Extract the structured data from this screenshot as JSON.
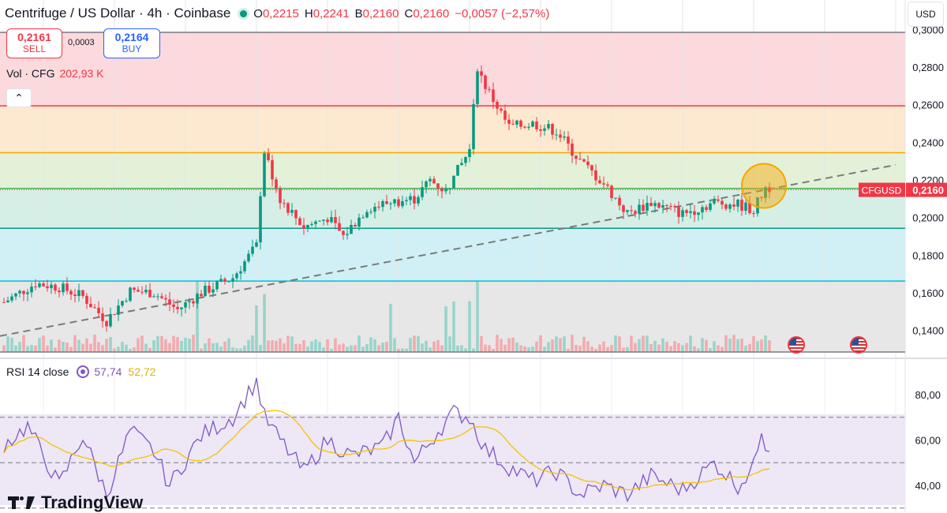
{
  "header": {
    "title": "Centrifuge / US Dollar · 4h · Coinbase",
    "ohlc": [
      {
        "k": "O",
        "v": "0,2215"
      },
      {
        "k": "H",
        "v": "0,2241"
      },
      {
        "k": "B",
        "v": "0,2160"
      },
      {
        "k": "C",
        "v": "0,2160"
      },
      {
        "k": "",
        "v": "−0,0057 (−2,57%)"
      }
    ]
  },
  "trade": {
    "sell_price": "0,2161",
    "sell_label": "SELL",
    "spread": "0,0003",
    "buy_price": "0,2164",
    "buy_label": "BUY"
  },
  "volume": {
    "label": "Vol · CFG",
    "value": "202,93 K"
  },
  "collapse_glyph": "⌃",
  "currency": "USD",
  "rsi": {
    "label": "RSI 14 close",
    "value": "57,74",
    "ma_value": "52,72",
    "color": "#7e57c2",
    "ma_color": "#f5c400"
  },
  "brand": "TradingView",
  "colors": {
    "up": "#089981",
    "down": "#f23645"
  },
  "chart_data": {
    "type": "candlestick",
    "title": "Centrifuge / US Dollar · 4h · Coinbase",
    "ylim": [
      0.13,
      0.3
    ],
    "yticks": [
      "0,1400",
      "0,1600",
      "0,1800",
      "0,2000",
      "0,2200",
      "0,2400",
      "0,2600",
      "0,2800",
      "0,3000"
    ],
    "ytick_values": [
      0.14,
      0.16,
      0.18,
      0.2,
      0.22,
      0.24,
      0.26,
      0.28,
      0.3
    ],
    "last_price": {
      "label": "CFGUSD",
      "value": "0,2160",
      "y": 0.216
    },
    "levels": [
      {
        "y": 0.2985,
        "color": "#787b86"
      },
      {
        "y": 0.2594,
        "color": "#f23645"
      },
      {
        "y": 0.2345,
        "color": "#f7a600"
      },
      {
        "y": 0.2155,
        "color": "#4caf50"
      },
      {
        "y": 0.1943,
        "color": "#089981"
      },
      {
        "y": 0.1662,
        "color": "#00bcd4"
      },
      {
        "y": 0.1285,
        "color": "#787b86"
      }
    ],
    "zones": [
      {
        "from": 0.2594,
        "to": 0.2985,
        "color": "#fbd9dc"
      },
      {
        "from": 0.2345,
        "to": 0.2594,
        "color": "#fde9cf"
      },
      {
        "from": 0.2155,
        "to": 0.2345,
        "color": "#e3f1d8"
      },
      {
        "from": 0.1943,
        "to": 0.2155,
        "color": "#d5efe6"
      },
      {
        "from": 0.1662,
        "to": 0.1943,
        "color": "#d1f0f5"
      },
      {
        "from": 0.1285,
        "to": 0.1662,
        "color": "#e7e7e7"
      }
    ],
    "trendline": {
      "y_start": 0.137,
      "y_end": 0.228
    },
    "highlight": {
      "index": 193,
      "y": 0.216
    },
    "anchors": [
      [
        0,
        0.155
      ],
      [
        8,
        0.165
      ],
      [
        14,
        0.163
      ],
      [
        20,
        0.158
      ],
      [
        26,
        0.145
      ],
      [
        32,
        0.161
      ],
      [
        38,
        0.16
      ],
      [
        44,
        0.151
      ],
      [
        50,
        0.16
      ],
      [
        58,
        0.168
      ],
      [
        64,
        0.185
      ],
      [
        66,
        0.235
      ],
      [
        70,
        0.21
      ],
      [
        76,
        0.195
      ],
      [
        82,
        0.2
      ],
      [
        86,
        0.19
      ],
      [
        92,
        0.205
      ],
      [
        98,
        0.208
      ],
      [
        104,
        0.21
      ],
      [
        108,
        0.22
      ],
      [
        112,
        0.214
      ],
      [
        118,
        0.236
      ],
      [
        120,
        0.28
      ],
      [
        122,
        0.27
      ],
      [
        128,
        0.248
      ],
      [
        134,
        0.25
      ],
      [
        140,
        0.246
      ],
      [
        146,
        0.23
      ],
      [
        152,
        0.218
      ],
      [
        158,
        0.202
      ],
      [
        164,
        0.208
      ],
      [
        172,
        0.202
      ],
      [
        180,
        0.208
      ],
      [
        186,
        0.207
      ],
      [
        190,
        0.204
      ],
      [
        193,
        0.216
      ]
    ],
    "rsi_ylim": [
      30,
      90
    ],
    "rsi_yticks": [
      "40,00",
      "60,00",
      "80,00"
    ],
    "rsi_ytick_values": [
      40,
      60,
      80
    ],
    "rsi_bands": [
      70,
      50,
      30
    ],
    "rsi_anchors": [
      [
        0,
        58
      ],
      [
        6,
        66
      ],
      [
        14,
        40
      ],
      [
        20,
        62
      ],
      [
        26,
        36
      ],
      [
        32,
        64
      ],
      [
        38,
        55
      ],
      [
        42,
        40
      ],
      [
        50,
        62
      ],
      [
        58,
        70
      ],
      [
        64,
        86
      ],
      [
        66,
        70
      ],
      [
        70,
        60
      ],
      [
        76,
        46
      ],
      [
        82,
        60
      ],
      [
        88,
        53
      ],
      [
        96,
        57
      ],
      [
        100,
        70
      ],
      [
        104,
        50
      ],
      [
        110,
        64
      ],
      [
        114,
        72
      ],
      [
        118,
        70
      ],
      [
        122,
        56
      ],
      [
        128,
        48
      ],
      [
        134,
        42
      ],
      [
        140,
        46
      ],
      [
        146,
        36
      ],
      [
        152,
        40
      ],
      [
        158,
        36
      ],
      [
        164,
        44
      ],
      [
        172,
        38
      ],
      [
        180,
        50
      ],
      [
        186,
        40
      ],
      [
        190,
        48
      ],
      [
        192,
        66
      ],
      [
        193,
        58
      ]
    ]
  }
}
